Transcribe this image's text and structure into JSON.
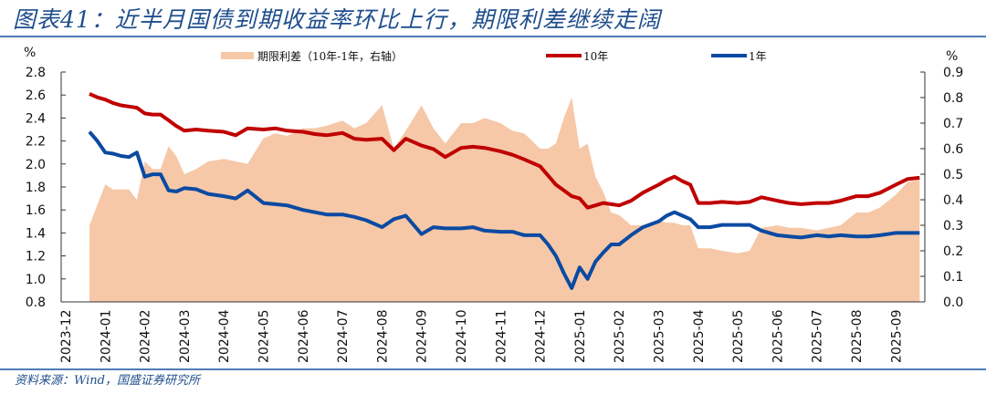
{
  "header": {
    "title": "图表41：近半月国债到期收益率环比上行，期限利差继续走阔"
  },
  "footer": {
    "source": "资料来源：Wind，国盛证券研究所"
  },
  "colors": {
    "ten_year": "#c00000",
    "one_year": "#0b4aa2",
    "spread": "#f6c8a8",
    "title": "#1f4e8c",
    "rule": "#4f7cb8"
  },
  "chart_data": {
    "type": "line+area",
    "title": "近半月国债到期收益率环比上行，期限利差继续走阔",
    "left_axis": {
      "unit_label": "%",
      "ylim": [
        0.8,
        2.8
      ],
      "ticks": [
        "2.8",
        "2.6",
        "2.4",
        "2.2",
        "2.0",
        "1.8",
        "1.6",
        "1.4",
        "1.2",
        "1.0",
        "0.8"
      ]
    },
    "right_axis": {
      "unit_label": "%",
      "ylim": [
        0.0,
        0.9
      ],
      "ticks": [
        "0.9",
        "0.8",
        "0.7",
        "0.6",
        "0.5",
        "0.4",
        "0.3",
        "0.2",
        "0.1",
        "0.0"
      ]
    },
    "x_ticks": [
      "2023-12",
      "2024-01",
      "2024-02",
      "2024-03",
      "2024-04",
      "2024-05",
      "2024-06",
      "2024-07",
      "2024-08",
      "2024-09",
      "2024-10",
      "2024-11",
      "2024-12",
      "2025-01",
      "2025-02",
      "2025-03",
      "2025-04",
      "2025-05",
      "2025-06",
      "2025-07",
      "2025-08",
      "2025-09"
    ],
    "legend": [
      {
        "name": "期限利差（10年-1年，右轴）",
        "type": "area"
      },
      {
        "name": "10年",
        "type": "line"
      },
      {
        "name": "1年",
        "type": "line"
      }
    ],
    "legend_position": "top",
    "grid": false,
    "x": [
      0.6,
      0.8,
      1.0,
      1.2,
      1.4,
      1.6,
      1.8,
      2.0,
      2.2,
      2.4,
      2.6,
      2.8,
      3.0,
      3.3,
      3.6,
      4.0,
      4.3,
      4.6,
      5.0,
      5.3,
      5.6,
      6.0,
      6.3,
      6.6,
      7.0,
      7.3,
      7.6,
      8.0,
      8.3,
      8.6,
      9.0,
      9.3,
      9.6,
      10.0,
      10.3,
      10.6,
      11.0,
      11.3,
      11.6,
      12.0,
      12.2,
      12.4,
      12.6,
      12.8,
      13.0,
      13.2,
      13.4,
      13.6,
      13.8,
      14.0,
      14.3,
      14.6,
      15.0,
      15.2,
      15.4,
      15.6,
      15.8,
      16.0,
      16.3,
      16.6,
      17.0,
      17.3,
      17.6,
      18.0,
      18.3,
      18.6,
      19.0,
      19.3,
      19.6,
      20.0,
      20.3,
      20.6,
      21.0,
      21.3,
      21.6
    ],
    "series": [
      {
        "name": "10年",
        "axis": "left",
        "values": [
          2.61,
          2.58,
          2.56,
          2.53,
          2.51,
          2.5,
          2.49,
          2.44,
          2.43,
          2.43,
          2.38,
          2.33,
          2.29,
          2.3,
          2.29,
          2.28,
          2.25,
          2.31,
          2.3,
          2.31,
          2.29,
          2.28,
          2.26,
          2.25,
          2.27,
          2.22,
          2.21,
          2.22,
          2.12,
          2.22,
          2.16,
          2.13,
          2.06,
          2.14,
          2.15,
          2.14,
          2.11,
          2.08,
          2.04,
          1.98,
          1.9,
          1.82,
          1.77,
          1.72,
          1.7,
          1.62,
          1.64,
          1.66,
          1.65,
          1.64,
          1.68,
          1.75,
          1.82,
          1.86,
          1.89,
          1.85,
          1.82,
          1.66,
          1.66,
          1.67,
          1.66,
          1.67,
          1.71,
          1.68,
          1.66,
          1.65,
          1.66,
          1.66,
          1.68,
          1.72,
          1.72,
          1.75,
          1.82,
          1.87,
          1.88
        ]
      },
      {
        "name": "1年",
        "axis": "left",
        "values": [
          2.28,
          2.2,
          2.1,
          2.09,
          2.07,
          2.06,
          2.1,
          1.89,
          1.91,
          1.91,
          1.77,
          1.76,
          1.79,
          1.78,
          1.74,
          1.72,
          1.7,
          1.77,
          1.66,
          1.65,
          1.64,
          1.6,
          1.58,
          1.56,
          1.56,
          1.54,
          1.51,
          1.45,
          1.52,
          1.55,
          1.39,
          1.45,
          1.44,
          1.44,
          1.45,
          1.42,
          1.41,
          1.41,
          1.38,
          1.38,
          1.3,
          1.2,
          1.05,
          0.92,
          1.1,
          1.0,
          1.15,
          1.23,
          1.3,
          1.3,
          1.38,
          1.45,
          1.5,
          1.55,
          1.58,
          1.55,
          1.52,
          1.45,
          1.45,
          1.47,
          1.47,
          1.47,
          1.42,
          1.38,
          1.37,
          1.36,
          1.38,
          1.37,
          1.38,
          1.37,
          1.37,
          1.38,
          1.4,
          1.4,
          1.4
        ]
      },
      {
        "name": "期限利差（10年-1年，右轴）",
        "axis": "right",
        "values": [
          0.3,
          0.38,
          0.46,
          0.44,
          0.44,
          0.44,
          0.4,
          0.55,
          0.52,
          0.52,
          0.61,
          0.57,
          0.5,
          0.52,
          0.55,
          0.56,
          0.55,
          0.54,
          0.64,
          0.66,
          0.65,
          0.68,
          0.68,
          0.69,
          0.71,
          0.68,
          0.7,
          0.77,
          0.6,
          0.67,
          0.77,
          0.68,
          0.62,
          0.7,
          0.7,
          0.72,
          0.7,
          0.67,
          0.66,
          0.6,
          0.6,
          0.62,
          0.72,
          0.8,
          0.6,
          0.62,
          0.49,
          0.43,
          0.35,
          0.34,
          0.3,
          0.3,
          0.32,
          0.31,
          0.31,
          0.3,
          0.3,
          0.21,
          0.21,
          0.2,
          0.19,
          0.2,
          0.29,
          0.3,
          0.29,
          0.29,
          0.28,
          0.29,
          0.3,
          0.35,
          0.35,
          0.37,
          0.42,
          0.47,
          0.48
        ]
      }
    ]
  }
}
